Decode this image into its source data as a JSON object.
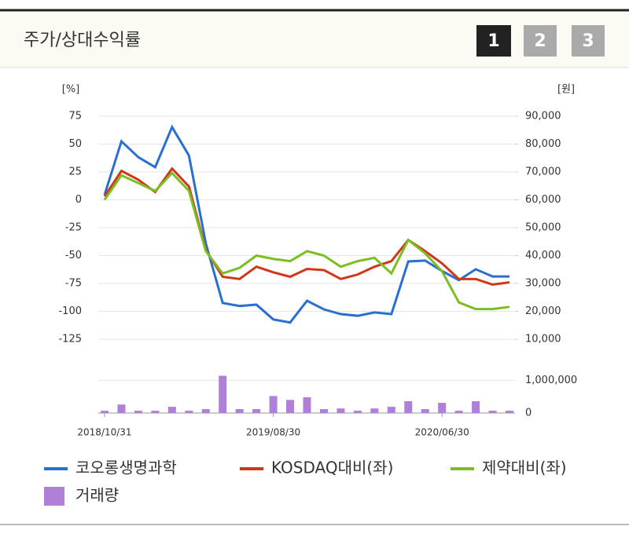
{
  "header": {
    "title": "주가/상대수익률",
    "buttons": [
      "1",
      "2",
      "3"
    ]
  },
  "chart_data": [
    {
      "type": "line",
      "ylabel": "[%]",
      "y2label": "[원]",
      "categories": [
        "2018/10/31",
        null,
        null,
        null,
        null,
        null,
        null,
        null,
        null,
        null,
        "2019/08/30",
        null,
        null,
        null,
        null,
        null,
        null,
        null,
        null,
        null,
        "2020/06/30",
        null,
        null,
        null,
        null
      ],
      "ylim": [
        -125,
        75
      ],
      "yticks": [
        75,
        50,
        25,
        0,
        -25,
        -50,
        -75,
        -100,
        -125
      ],
      "y2lim": [
        10000,
        90000
      ],
      "y2ticks": [
        {
          "value": 90000,
          "label": "90,000"
        },
        {
          "value": 80000,
          "label": "80,000"
        },
        {
          "value": 70000,
          "label": "70,000"
        },
        {
          "value": 60000,
          "label": "60,000"
        },
        {
          "value": 50000,
          "label": "50,000"
        },
        {
          "value": 40000,
          "label": "40,000"
        },
        {
          "value": 30000,
          "label": "30,000"
        },
        {
          "value": 20000,
          "label": "20,000"
        },
        {
          "value": 10000,
          "label": "10,000"
        }
      ],
      "grid": true,
      "series": [
        {
          "name": "코오롱생명과학",
          "color": "#2a6fcf",
          "axis": "y2",
          "values": [
            61800,
            81000,
            75300,
            71700,
            86100,
            75900,
            44400,
            23000,
            21900,
            22400,
            17100,
            16000,
            23800,
            20700,
            19000,
            18400,
            19600,
            19000,
            37900,
            38200,
            34500,
            31200,
            35100,
            32500,
            32500
          ]
        },
        {
          "name": "KOSDAQ대비(좌)",
          "color": "#d0361a",
          "values": [
            3,
            26,
            18,
            7,
            28,
            12,
            -45,
            -69,
            -71,
            -60,
            -65,
            -69,
            -62,
            -63,
            -71,
            -67,
            -60,
            -55,
            -36,
            -46,
            -57,
            -71,
            -71,
            -76,
            -74
          ]
        },
        {
          "name": "제약대비(좌)",
          "color": "#7cbd24",
          "values": [
            0,
            22,
            15,
            8,
            24,
            8,
            -46,
            -66,
            -61,
            -50,
            -53,
            -55,
            -46,
            -50,
            -60,
            -55,
            -52,
            -66,
            -36,
            -48,
            -64,
            -92,
            -98,
            -98,
            -96
          ]
        }
      ]
    },
    {
      "type": "bar",
      "ylim": [
        0,
        1200000
      ],
      "yticks": [
        0,
        {
          "value": 1000000,
          "label": "1,000,000"
        }
      ],
      "grid": true,
      "series": [
        {
          "name": "거래량",
          "color": "#b07fd8",
          "values": [
            70000,
            260000,
            70000,
            70000,
            190000,
            70000,
            120000,
            1140000,
            120000,
            120000,
            520000,
            400000,
            480000,
            120000,
            140000,
            70000,
            140000,
            190000,
            360000,
            120000,
            310000,
            70000,
            360000,
            70000,
            70000
          ]
        }
      ]
    }
  ]
}
